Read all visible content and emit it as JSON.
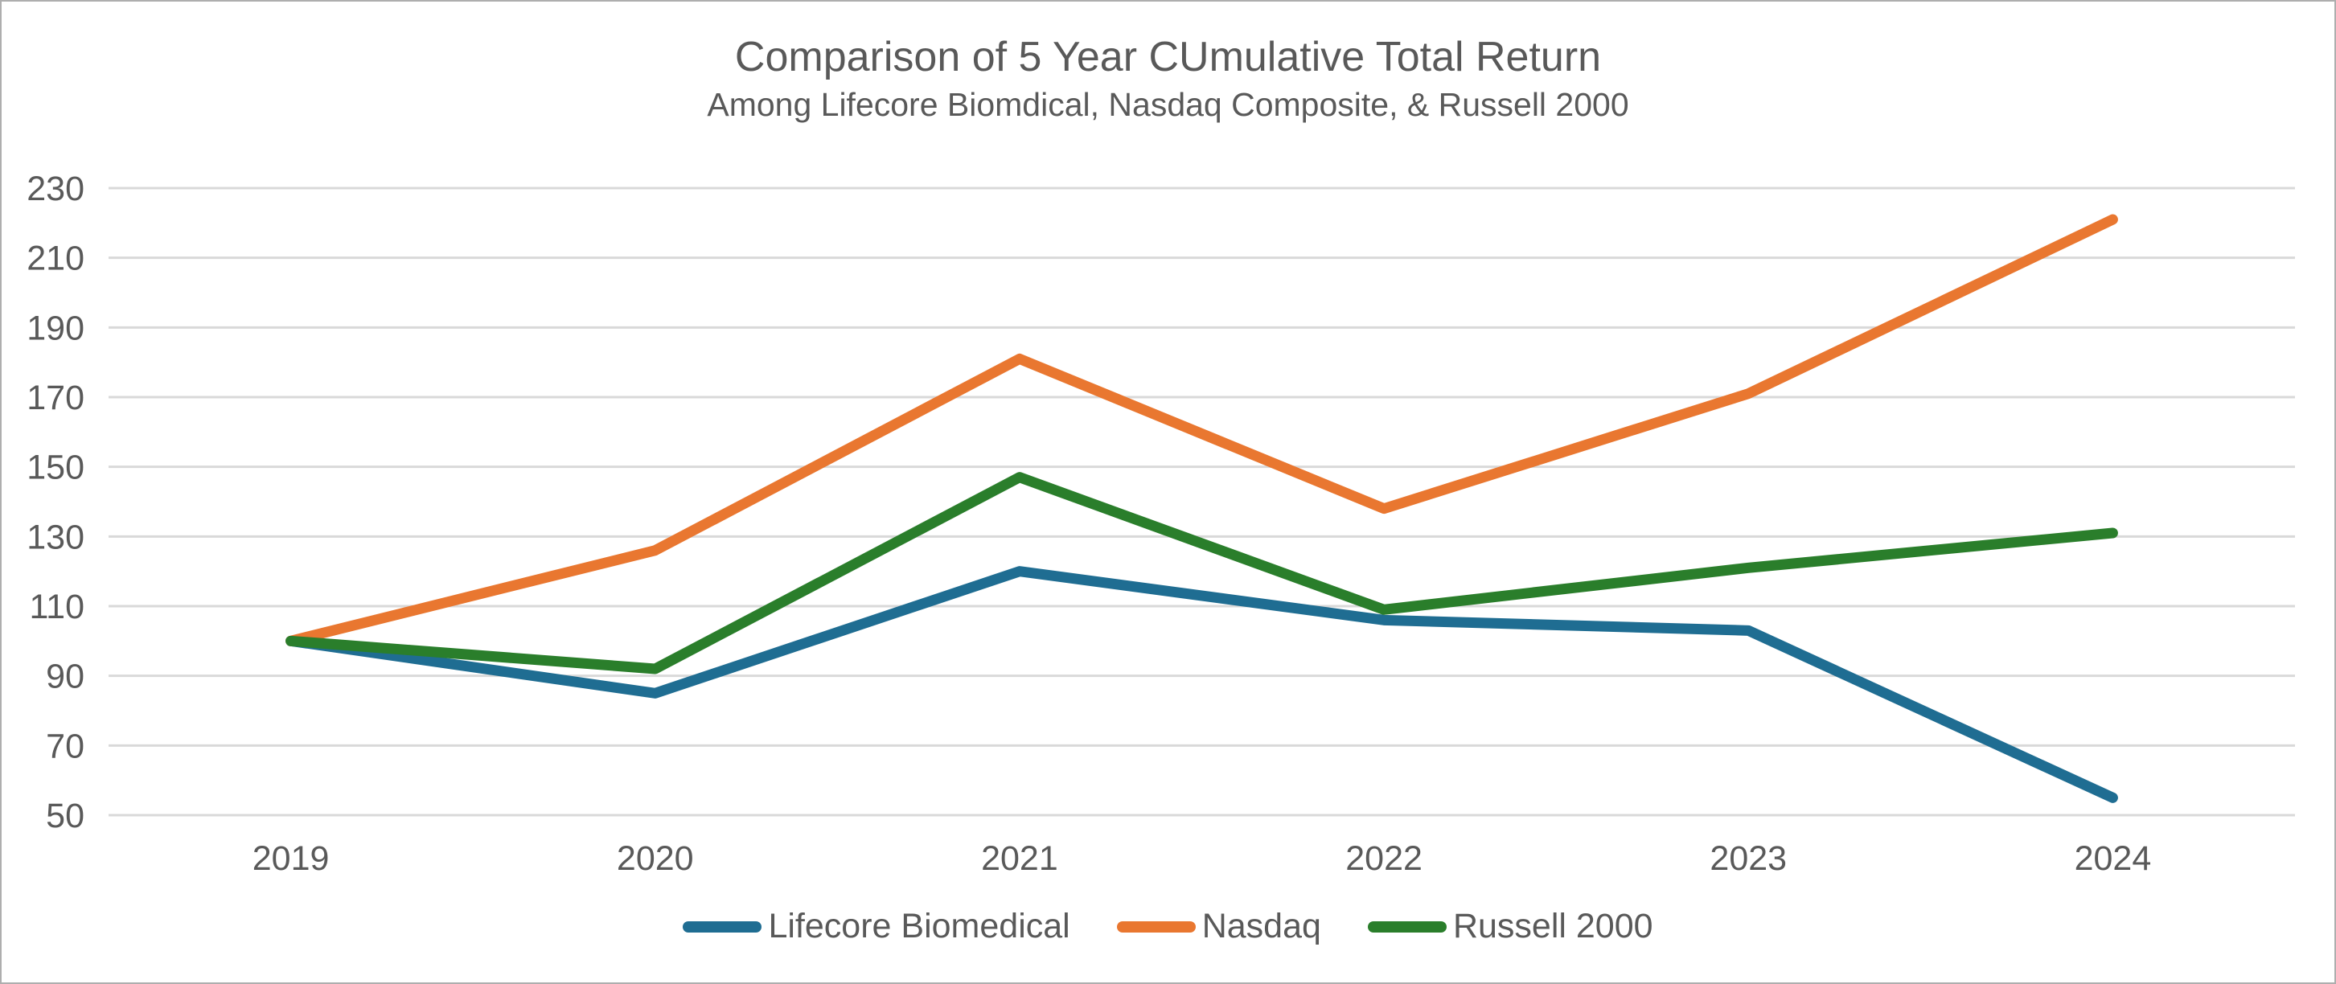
{
  "chart_data": {
    "type": "line",
    "title": "Comparison of 5 Year CUmulative Total Return",
    "subtitle": "Among Lifecore Biomdical, Nasdaq Composite, & Russell 2000",
    "categories": [
      "2019",
      "2020",
      "2021",
      "2022",
      "2023",
      "2024"
    ],
    "series": [
      {
        "name": "Lifecore Biomedical",
        "color": "#1f6d92",
        "values": [
          100,
          85,
          120,
          106,
          103,
          55
        ]
      },
      {
        "name": "Nasdaq",
        "color": "#e97730",
        "values": [
          100,
          126,
          181,
          138,
          171,
          221
        ]
      },
      {
        "name": "Russell 2000",
        "color": "#2a7e2b",
        "values": [
          100,
          92,
          147,
          109,
          121,
          131
        ]
      }
    ],
    "ylim": [
      50,
      230
    ],
    "ytick_step": 20,
    "xlabel": "",
    "ylabel": "",
    "grid": true,
    "legend_position": "bottom"
  },
  "colors": {
    "text": "#595959",
    "gridline": "#d9d9d9",
    "background": "#ffffff",
    "border": "#aeaeae"
  }
}
